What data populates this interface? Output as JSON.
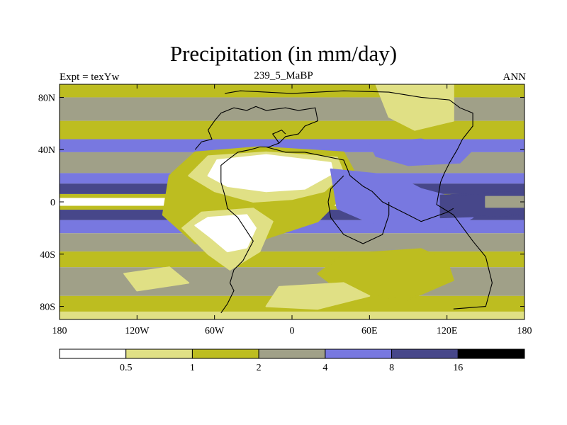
{
  "chart_data": {
    "type": "heatmap",
    "title": "Precipitation (in mm/day)",
    "left_string": "Expt = texYw",
    "center_string": "239_5_MaBP",
    "right_string": "ANN",
    "xlim": [
      -180,
      180
    ],
    "ylim": [
      -90,
      90
    ],
    "x_ticks": [
      {
        "value": -180,
        "label": "180"
      },
      {
        "value": -120,
        "label": "120W"
      },
      {
        "value": -60,
        "label": "60W"
      },
      {
        "value": 0,
        "label": "0"
      },
      {
        "value": 60,
        "label": "60E"
      },
      {
        "value": 120,
        "label": "120E"
      },
      {
        "value": 180,
        "label": "180"
      }
    ],
    "y_ticks": [
      {
        "value": 80,
        "label": "80N"
      },
      {
        "value": 40,
        "label": "40N"
      },
      {
        "value": 0,
        "label": "0"
      },
      {
        "value": -40,
        "label": "40S"
      },
      {
        "value": -80,
        "label": "80S"
      }
    ],
    "colorbar": {
      "levels": [
        "0.5",
        "1",
        "2",
        "4",
        "8",
        "16"
      ],
      "colors": [
        "#ffffff",
        "#e0e085",
        "#bdbd20",
        "#a0a088",
        "#7878e0",
        "#47478a",
        "#000000"
      ]
    },
    "bands": [
      {
        "lat": [
          80,
          90
        ],
        "bin": 2
      },
      {
        "lat": [
          62,
          80
        ],
        "bin": 3
      },
      {
        "lat": [
          48,
          62
        ],
        "bin": 2
      },
      {
        "lat": [
          38,
          48
        ],
        "bin": 4
      },
      {
        "lat": [
          22,
          38
        ],
        "bin": 3
      },
      {
        "lat": [
          14,
          22
        ],
        "bin": 4
      },
      {
        "lat": [
          6,
          14
        ],
        "bin": 5
      },
      {
        "lat": [
          3,
          6
        ],
        "bin": 2
      },
      {
        "lat": [
          -3,
          3
        ],
        "bin": 0
      },
      {
        "lat": [
          -6,
          -3
        ],
        "bin": 2
      },
      {
        "lat": [
          -14,
          -6
        ],
        "bin": 5
      },
      {
        "lat": [
          -24,
          -14
        ],
        "bin": 4
      },
      {
        "lat": [
          -38,
          -24
        ],
        "bin": 3
      },
      {
        "lat": [
          -50,
          -38
        ],
        "bin": 2
      },
      {
        "lat": [
          -72,
          -50
        ],
        "bin": 3
      },
      {
        "lat": [
          -84,
          -72
        ],
        "bin": 2
      },
      {
        "lat": [
          -90,
          -84
        ],
        "bin": 1
      }
    ],
    "regions": [
      {
        "bin": 2,
        "points": [
          [
            -75,
            38
          ],
          [
            -25,
            42
          ],
          [
            40,
            38
          ],
          [
            50,
            20
          ],
          [
            40,
            5
          ],
          [
            20,
            -15
          ],
          [
            -20,
            -28
          ],
          [
            -75,
            -32
          ],
          [
            -100,
            -10
          ],
          [
            -95,
            20
          ]
        ]
      },
      {
        "bin": 1,
        "points": [
          [
            -65,
            35
          ],
          [
            -20,
            38
          ],
          [
            35,
            34
          ],
          [
            40,
            22
          ],
          [
            25,
            8
          ],
          [
            0,
            2
          ],
          [
            -30,
            0
          ],
          [
            -60,
            8
          ],
          [
            -80,
            20
          ]
        ]
      },
      {
        "bin": 0,
        "points": [
          [
            -58,
            32
          ],
          [
            -20,
            36
          ],
          [
            30,
            30
          ],
          [
            32,
            22
          ],
          [
            10,
            10
          ],
          [
            -20,
            8
          ],
          [
            -50,
            12
          ],
          [
            -65,
            20
          ]
        ]
      },
      {
        "bin": 1,
        "points": [
          [
            -70,
            -8
          ],
          [
            -30,
            -5
          ],
          [
            -15,
            -15
          ],
          [
            -25,
            -38
          ],
          [
            -48,
            -52
          ],
          [
            -65,
            -40
          ],
          [
            -85,
            -20
          ]
        ]
      },
      {
        "bin": 0,
        "points": [
          [
            -65,
            -12
          ],
          [
            -35,
            -10
          ],
          [
            -28,
            -20
          ],
          [
            -35,
            -35
          ],
          [
            -50,
            -38
          ],
          [
            -62,
            -28
          ],
          [
            -75,
            -18
          ]
        ]
      },
      {
        "bin": 2,
        "points": [
          [
            40,
            -40
          ],
          [
            100,
            -36
          ],
          [
            120,
            -45
          ],
          [
            125,
            -60
          ],
          [
            90,
            -75
          ],
          [
            40,
            -70
          ],
          [
            20,
            -55
          ]
        ]
      },
      {
        "bin": 1,
        "points": [
          [
            -10,
            -65
          ],
          [
            40,
            -62
          ],
          [
            60,
            -72
          ],
          [
            20,
            -82
          ],
          [
            -20,
            -80
          ]
        ]
      },
      {
        "bin": 1,
        "points": [
          [
            65,
            90
          ],
          [
            125,
            90
          ],
          [
            125,
            62
          ],
          [
            95,
            55
          ],
          [
            75,
            65
          ]
        ]
      },
      {
        "bin": 1,
        "points": [
          [
            -130,
            -55
          ],
          [
            -95,
            -50
          ],
          [
            -80,
            -62
          ],
          [
            -120,
            -68
          ]
        ]
      },
      {
        "bin": 4,
        "points": [
          [
            30,
            25
          ],
          [
            80,
            20
          ],
          [
            100,
            10
          ],
          [
            130,
            2
          ],
          [
            140,
            -12
          ],
          [
            120,
            -22
          ],
          [
            70,
            -20
          ],
          [
            35,
            -5
          ]
        ]
      },
      {
        "bin": 5,
        "points": [
          [
            115,
            5
          ],
          [
            180,
            8
          ],
          [
            180,
            -10
          ],
          [
            115,
            -12
          ]
        ]
      },
      {
        "bin": 3,
        "points": [
          [
            150,
            4
          ],
          [
            180,
            4
          ],
          [
            180,
            -4
          ],
          [
            150,
            -4
          ]
        ]
      },
      {
        "bin": 4,
        "points": [
          [
            60,
            45
          ],
          [
            100,
            48
          ],
          [
            140,
            40
          ],
          [
            130,
            30
          ],
          [
            90,
            28
          ],
          [
            65,
            35
          ]
        ]
      }
    ],
    "coastlines": [
      [
        [
          -52,
          83
        ],
        [
          -40,
          85
        ],
        [
          -20,
          84
        ],
        [
          0,
          83
        ],
        [
          40,
          85
        ],
        [
          75,
          84
        ],
        [
          100,
          80
        ],
        [
          122,
          78
        ],
        [
          130,
          72
        ],
        [
          140,
          68
        ],
        [
          140,
          58
        ],
        [
          132,
          48
        ],
        [
          128,
          40
        ],
        [
          122,
          30
        ],
        [
          118,
          22
        ],
        [
          115,
          15
        ],
        [
          112,
          -2
        ],
        [
          125,
          -10
        ],
        [
          140,
          -30
        ],
        [
          150,
          -42
        ],
        [
          155,
          -62
        ],
        [
          150,
          -80
        ],
        [
          125,
          -82
        ]
      ],
      [
        [
          -75,
          40
        ],
        [
          -70,
          46
        ],
        [
          -62,
          48
        ],
        [
          -65,
          55
        ],
        [
          -60,
          62
        ],
        [
          -55,
          68
        ],
        [
          -45,
          72
        ],
        [
          -35,
          70
        ],
        [
          -28,
          73
        ],
        [
          -20,
          70
        ],
        [
          -5,
          72
        ],
        [
          5,
          70
        ],
        [
          18,
          72
        ],
        [
          20,
          62
        ],
        [
          10,
          58
        ],
        [
          5,
          52
        ],
        [
          -5,
          50
        ],
        [
          -10,
          45
        ],
        [
          -18,
          42
        ],
        [
          -25,
          42
        ]
      ],
      [
        [
          -25,
          42
        ],
        [
          -32,
          40
        ],
        [
          -42,
          38
        ],
        [
          -50,
          32
        ],
        [
          -55,
          28
        ],
        [
          -55,
          15
        ],
        [
          -52,
          5
        ],
        [
          -50,
          -5
        ],
        [
          -42,
          -12
        ],
        [
          -30,
          -30
        ],
        [
          -38,
          -45
        ],
        [
          -45,
          -52
        ],
        [
          -48,
          -62
        ],
        [
          -45,
          -68
        ],
        [
          -50,
          -78
        ],
        [
          -55,
          -85
        ]
      ],
      [
        [
          -20,
          42
        ],
        [
          -5,
          38
        ],
        [
          10,
          38
        ],
        [
          25,
          35
        ],
        [
          40,
          32
        ],
        [
          45,
          20
        ],
        [
          55,
          12
        ],
        [
          62,
          8
        ],
        [
          70,
          0
        ],
        [
          80,
          -5
        ],
        [
          90,
          -10
        ],
        [
          100,
          -15
        ],
        [
          120,
          -8
        ],
        [
          125,
          -5
        ]
      ],
      [
        [
          40,
          20
        ],
        [
          30,
          10
        ],
        [
          28,
          0
        ],
        [
          30,
          -12
        ],
        [
          40,
          -25
        ],
        [
          55,
          -32
        ],
        [
          70,
          -25
        ],
        [
          75,
          -10
        ],
        [
          75,
          0
        ]
      ],
      [
        [
          -10,
          45
        ],
        [
          -15,
          52
        ],
        [
          -8,
          55
        ],
        [
          -5,
          52
        ]
      ]
    ]
  }
}
